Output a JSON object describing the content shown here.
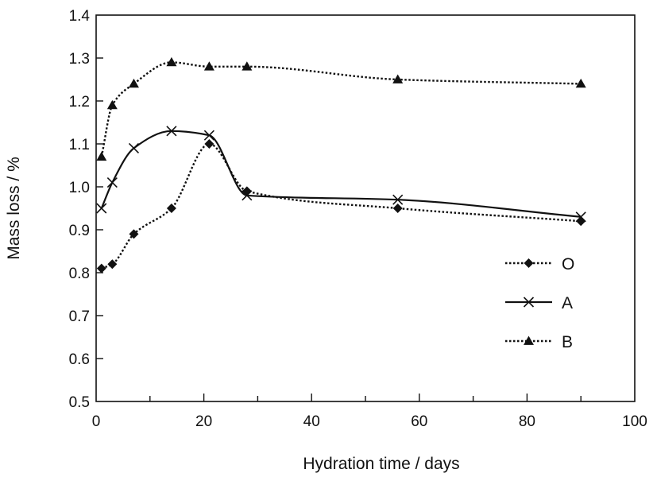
{
  "chart_data": {
    "type": "line",
    "title": "",
    "xlabel": "Hydration time / days",
    "ylabel": "Mass loss / %",
    "xlim": [
      0,
      100
    ],
    "ylim": [
      0.5,
      1.4
    ],
    "xticks": [
      0,
      20,
      40,
      60,
      80,
      100
    ],
    "yticks": [
      0.5,
      0.6,
      0.7,
      0.8,
      0.9,
      1.0,
      1.1,
      1.2,
      1.3,
      1.4
    ],
    "xtick_labels": [
      "0",
      "20",
      "40",
      "60",
      "80",
      "100"
    ],
    "ytick_labels": [
      "0.5",
      "0.6",
      "0.7",
      "0.8",
      "0.9",
      "1.0",
      "1.1",
      "1.2",
      "1.3",
      "1.4"
    ],
    "grid": false,
    "legend_position": "right",
    "series": [
      {
        "name": "O",
        "marker": "diamond",
        "line_style": "dotted",
        "color": "#111111",
        "x": [
          1,
          3,
          7,
          14,
          21,
          28,
          56,
          90
        ],
        "y": [
          0.81,
          0.82,
          0.89,
          0.95,
          1.1,
          0.99,
          0.95,
          0.92
        ]
      },
      {
        "name": "A",
        "marker": "x",
        "line_style": "solid",
        "color": "#111111",
        "x": [
          1,
          3,
          7,
          14,
          21,
          28,
          56,
          90
        ],
        "y": [
          0.95,
          1.01,
          1.09,
          1.13,
          1.12,
          0.98,
          0.97,
          0.93
        ]
      },
      {
        "name": "B",
        "marker": "triangle",
        "line_style": "dotted",
        "color": "#111111",
        "x": [
          1,
          3,
          7,
          14,
          21,
          28,
          56,
          90
        ],
        "y": [
          1.07,
          1.19,
          1.24,
          1.29,
          1.28,
          1.28,
          1.25,
          1.24
        ]
      }
    ]
  }
}
